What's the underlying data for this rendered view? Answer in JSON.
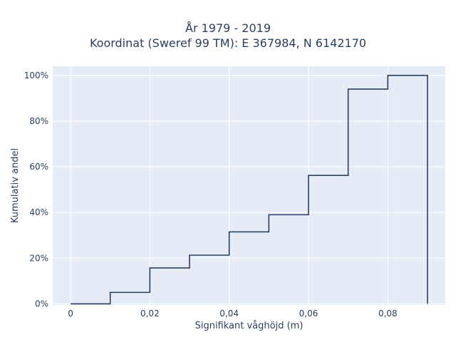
{
  "chart_data": {
    "type": "line",
    "line_shape": "step",
    "title_lines": [
      "År 1979 - 2019",
      "Koordinat (Sweref 99 TM): E 367984, N 6142170"
    ],
    "xlabel": "Signifikant våghöjd (m)",
    "ylabel": "Kumulativ andel",
    "x_ticks": [
      {
        "value": 0,
        "label": "0"
      },
      {
        "value": 0.02,
        "label": "0,02"
      },
      {
        "value": 0.04,
        "label": "0,04"
      },
      {
        "value": 0.06,
        "label": "0,06"
      },
      {
        "value": 0.08,
        "label": "0,08"
      }
    ],
    "y_ticks": [
      {
        "value": 0,
        "label": "0%"
      },
      {
        "value": 20,
        "label": "20%"
      },
      {
        "value": 40,
        "label": "40%"
      },
      {
        "value": 60,
        "label": "60%"
      },
      {
        "value": 80,
        "label": "80%"
      },
      {
        "value": 100,
        "label": "100%"
      }
    ],
    "xlim": [
      -0.0045,
      0.0945
    ],
    "ylim": [
      -0.5,
      104
    ],
    "grid": true,
    "line_color": "#2a3f5f",
    "bins": [
      0,
      0.01,
      0.02,
      0.03,
      0.04,
      0.05,
      0.06,
      0.07,
      0.08,
      0.09
    ],
    "values": [
      0,
      5,
      15.7,
      21.3,
      31.5,
      39,
      56.2,
      94,
      100,
      0
    ]
  }
}
